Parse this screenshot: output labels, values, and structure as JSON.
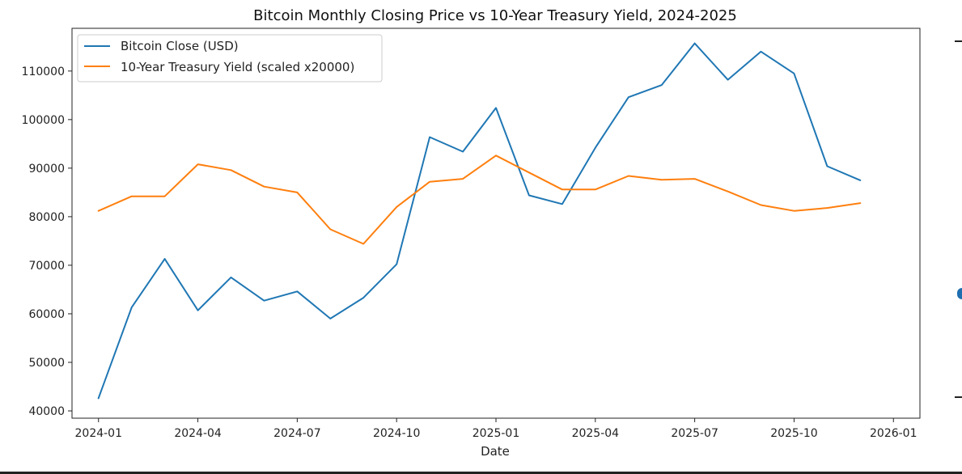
{
  "chart_data": {
    "type": "line",
    "title": "Bitcoin Monthly Closing Price vs 10-Year Treasury Yield, 2024-2025",
    "xlabel": "Date",
    "ylabel": "",
    "x": [
      "2024-01",
      "2024-02",
      "2024-03",
      "2024-04",
      "2024-05",
      "2024-06",
      "2024-07",
      "2024-08",
      "2024-09",
      "2024-10",
      "2024-11",
      "2024-12",
      "2025-01",
      "2025-02",
      "2025-03",
      "2025-04",
      "2025-05",
      "2025-06",
      "2025-07",
      "2025-08",
      "2025-09",
      "2025-10",
      "2025-11",
      "2025-12"
    ],
    "x_ticks": [
      "2024-01",
      "2024-04",
      "2024-07",
      "2024-10",
      "2025-01",
      "2025-04",
      "2025-07",
      "2025-10",
      "2026-01"
    ],
    "ylim": [
      38500,
      118800
    ],
    "y_ticks": [
      40000,
      50000,
      60000,
      70000,
      80000,
      90000,
      100000,
      110000
    ],
    "grid": false,
    "legend": "top-left",
    "series": [
      {
        "name": "Bitcoin Close (USD)",
        "color": "#1f77b4",
        "values": [
          42600,
          61300,
          71300,
          60700,
          67500,
          62700,
          64600,
          59000,
          63300,
          70200,
          96400,
          93400,
          102400,
          84400,
          82600,
          94200,
          104600,
          107100,
          115700,
          108200,
          114000,
          109500,
          90400,
          87500
        ]
      },
      {
        "name": "10-Year Treasury Yield (scaled x20000)",
        "color": "#ff7f0e",
        "values": [
          81200,
          84200,
          84200,
          90800,
          89600,
          86200,
          85000,
          77400,
          74400,
          82000,
          87200,
          87800,
          92600,
          89100,
          85600,
          85600,
          88400,
          87600,
          87800,
          85200,
          82400,
          81200,
          81800,
          82800
        ]
      }
    ]
  }
}
